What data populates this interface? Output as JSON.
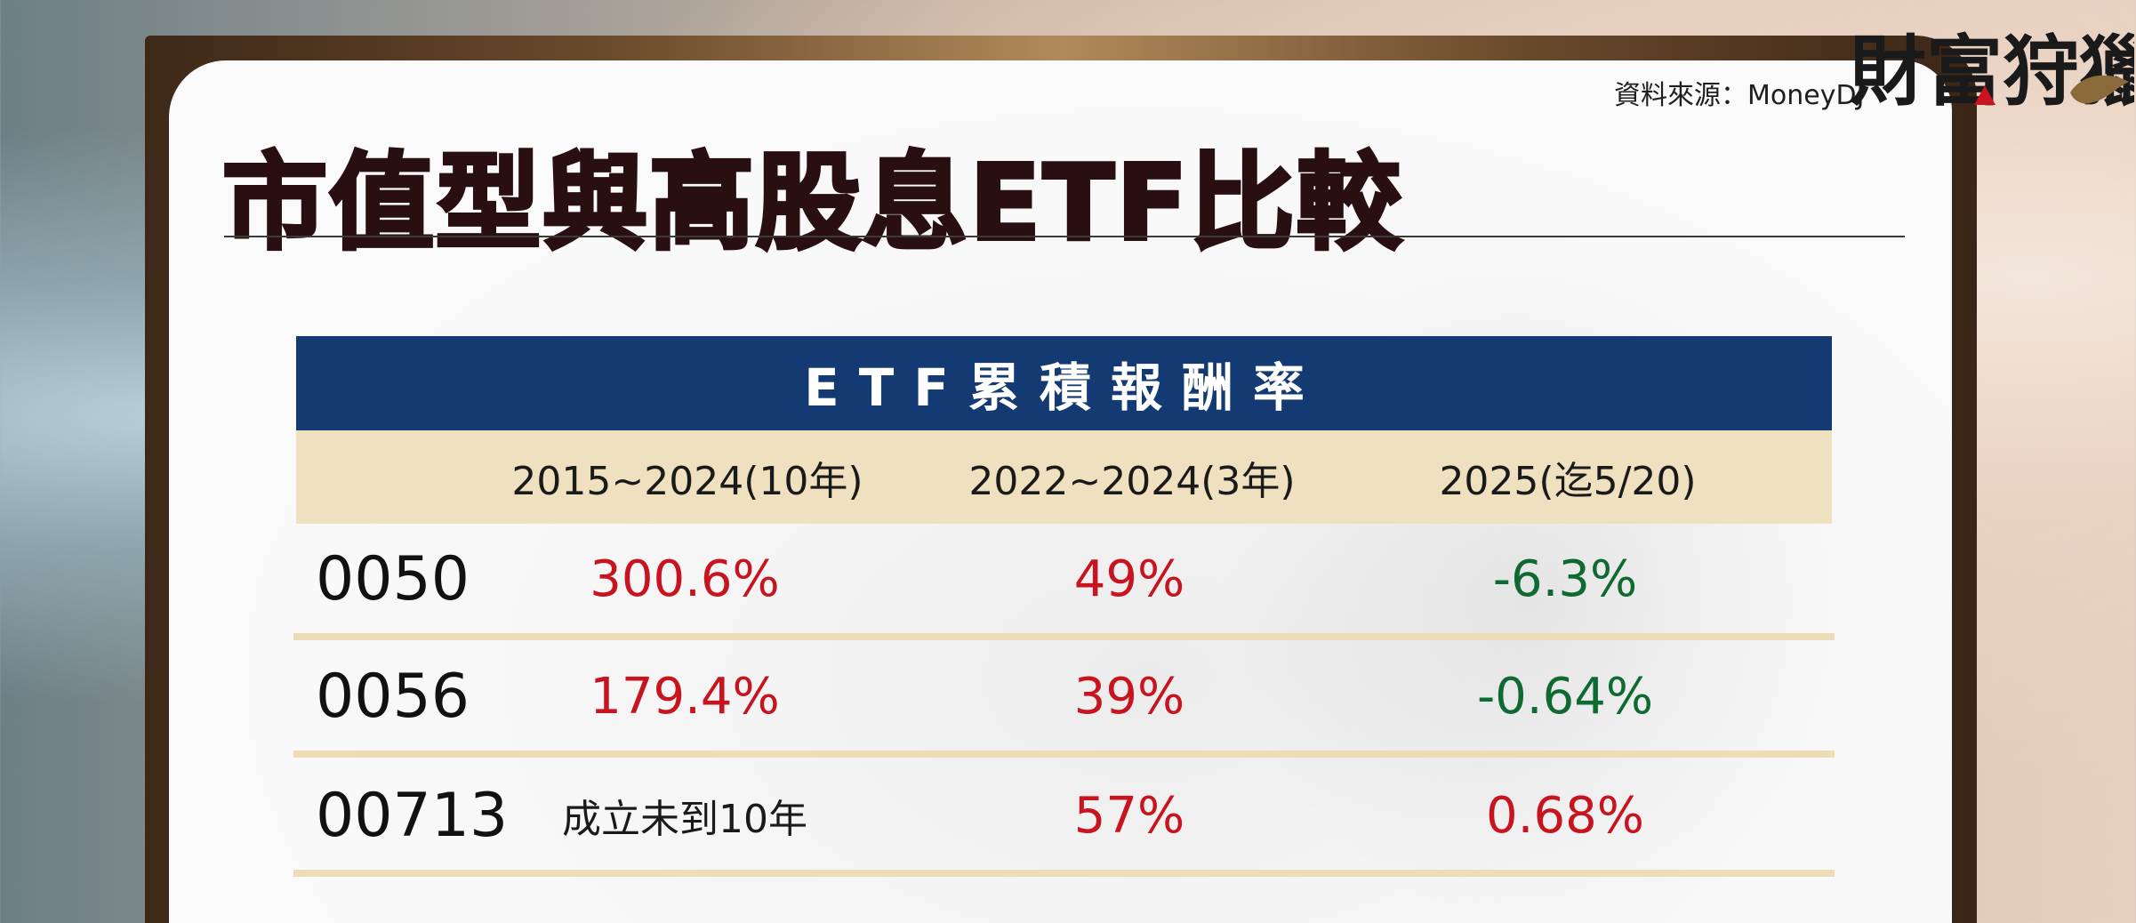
{
  "source_text": "資料來源：MoneyDJ",
  "logo_text": "財富狩獵",
  "title": "市值型與高股息ETF比較",
  "table": {
    "header": "ETF累積報酬率",
    "columns": [
      "2015~2024(10年)",
      "2022~2024(3年)",
      "2025(迄5/20)"
    ],
    "rows": [
      {
        "code": "0050",
        "values": [
          "300.6%",
          "49%",
          "-6.3%"
        ],
        "tones": [
          "pos",
          "pos",
          "neg"
        ]
      },
      {
        "code": "0056",
        "values": [
          "179.4%",
          "39%",
          "-0.64%"
        ],
        "tones": [
          "pos",
          "pos",
          "neg"
        ]
      },
      {
        "code": "00713",
        "values": [
          "成立未到10年",
          "57%",
          "0.68%"
        ],
        "tones": [
          "note",
          "pos",
          "pos"
        ]
      }
    ]
  },
  "colors": {
    "header_bg": "#133a73",
    "col_head_bg": "#efe0c0",
    "positive": "#c8141e",
    "negative": "#0f6a32",
    "title": "#2a0f12"
  }
}
